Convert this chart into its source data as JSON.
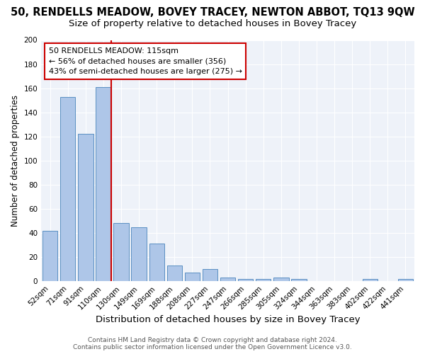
{
  "title": "50, RENDELLS MEADOW, BOVEY TRACEY, NEWTON ABBOT, TQ13 9QW",
  "subtitle": "Size of property relative to detached houses in Bovey Tracey",
  "xlabel": "Distribution of detached houses by size in Bovey Tracey",
  "ylabel": "Number of detached properties",
  "categories": [
    "52sqm",
    "71sqm",
    "91sqm",
    "110sqm",
    "130sqm",
    "149sqm",
    "169sqm",
    "188sqm",
    "208sqm",
    "227sqm",
    "247sqm",
    "266sqm",
    "285sqm",
    "305sqm",
    "324sqm",
    "344sqm",
    "363sqm",
    "383sqm",
    "402sqm",
    "422sqm",
    "441sqm"
  ],
  "values": [
    42,
    153,
    122,
    161,
    48,
    45,
    31,
    13,
    7,
    10,
    3,
    2,
    2,
    3,
    2,
    0,
    0,
    0,
    2,
    0,
    2
  ],
  "bar_color": "#aec6e8",
  "bar_edge_color": "#5a8fc2",
  "vline_x_index": 3,
  "vline_color": "#cc0000",
  "annotation_title": "50 RENDELLS MEADOW: 115sqm",
  "annotation_line1": "← 56% of detached houses are smaller (356)",
  "annotation_line2": "43% of semi-detached houses are larger (275) →",
  "annotation_box_color": "#ffffff",
  "annotation_box_edge_color": "#cc0000",
  "ylim": [
    0,
    200
  ],
  "yticks": [
    0,
    20,
    40,
    60,
    80,
    100,
    120,
    140,
    160,
    180,
    200
  ],
  "background_color": "#eef2f9",
  "footer1": "Contains HM Land Registry data © Crown copyright and database right 2024.",
  "footer2": "Contains public sector information licensed under the Open Government Licence v3.0.",
  "title_fontsize": 10.5,
  "subtitle_fontsize": 9.5,
  "xlabel_fontsize": 9.5,
  "ylabel_fontsize": 8.5,
  "tick_fontsize": 7.5,
  "footer_fontsize": 6.5
}
